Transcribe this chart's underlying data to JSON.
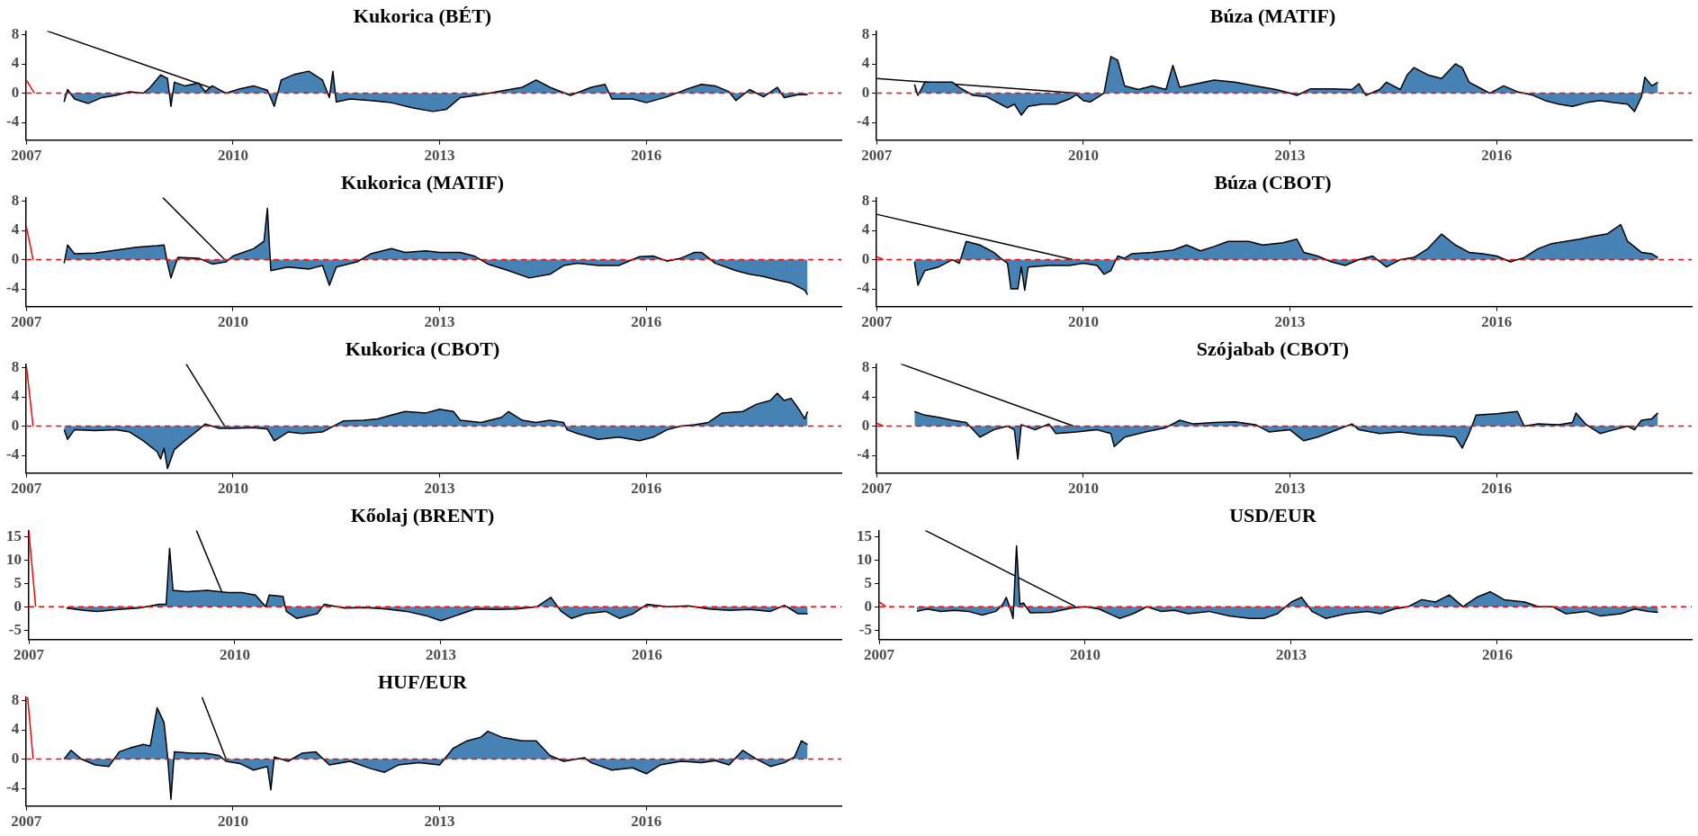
{
  "chart_data": [
    {
      "type": "area",
      "title": "Kukorica (BÉT)",
      "xlim": [
        2007,
        2018.83
      ],
      "xticks": [
        2007,
        2010,
        2013,
        2016
      ],
      "ylim": [
        -6.4,
        8.5
      ],
      "yticks": [
        -4,
        0,
        4,
        8
      ],
      "ref_lines": [
        {
          "axis": "y",
          "value": 0,
          "color": "#ff0000",
          "line_style": "dashed"
        }
      ],
      "series": [
        {
          "type": "area",
          "color": "#4682b4",
          "x": [
            2007.55,
            2007.6,
            2007.7,
            2007.9,
            2008.1,
            2008.3,
            2008.5,
            2008.7,
            2008.8,
            2008.95,
            2009.05,
            2009.1,
            2009.15,
            2009.3,
            2009.5,
            2009.6,
            2009.7,
            2009.9,
            2010.1,
            2010.3,
            2010.5,
            2010.6,
            2010.7,
            2010.9,
            2011.1,
            2011.3,
            2011.4,
            2011.45,
            2011.5,
            2011.7,
            2012.0,
            2012.3,
            2012.6,
            2012.9,
            2013.1,
            2013.3,
            2013.6,
            2013.9,
            2014.2,
            2014.4,
            2014.6,
            2014.9,
            2015.2,
            2015.4,
            2015.5,
            2015.8,
            2016.0,
            2016.3,
            2016.6,
            2016.8,
            2017.0,
            2017.2,
            2017.3,
            2017.5,
            2017.7,
            2017.9,
            2018.0,
            2018.2,
            2018.34
          ],
          "values": [
            -1.2,
            0.5,
            -0.8,
            -1.4,
            -0.6,
            -0.3,
            0.2,
            0.0,
            0.8,
            2.5,
            2.0,
            -1.8,
            1.5,
            1.0,
            1.4,
            0.2,
            1.0,
            0.0,
            0.6,
            1.0,
            0.4,
            -1.8,
            1.8,
            2.6,
            3.0,
            1.8,
            -0.6,
            3.0,
            -1.2,
            -0.8,
            -1.0,
            -1.3,
            -2.0,
            -2.5,
            -2.2,
            -0.6,
            -0.2,
            0.3,
            0.8,
            1.8,
            0.8,
            -0.3,
            0.8,
            1.2,
            -0.8,
            -0.8,
            -1.3,
            -0.5,
            0.6,
            1.2,
            1.0,
            0.2,
            -1.0,
            0.5,
            -0.5,
            0.8,
            -0.6,
            -0.2,
            -0.2
          ]
        },
        {
          "type": "line",
          "color": "#000000",
          "x": [
            2007.3,
            2009.9
          ],
          "values": [
            8.5,
            0
          ]
        },
        {
          "type": "line",
          "color": "#ff0000",
          "x": [
            2007,
            2007.12
          ],
          "values": [
            1.8,
            0
          ]
        }
      ]
    },
    {
      "type": "area",
      "title": "Búza (MATIF)",
      "xlim": [
        2007,
        2018.83
      ],
      "xticks": [
        2007,
        2010,
        2013,
        2016
      ],
      "ylim": [
        -6.4,
        8.5
      ],
      "yticks": [
        -4,
        0,
        4,
        8
      ],
      "ref_lines": [
        {
          "axis": "y",
          "value": 0,
          "color": "#ff0000",
          "line_style": "dashed"
        }
      ],
      "series": [
        {
          "type": "area",
          "color": "#4682b4",
          "x": [
            2007.55,
            2007.6,
            2007.7,
            2007.9,
            2008.1,
            2008.2,
            2008.4,
            2008.6,
            2008.8,
            2008.9,
            2009.0,
            2009.1,
            2009.2,
            2009.4,
            2009.6,
            2009.8,
            2009.9,
            2010.0,
            2010.1,
            2010.3,
            2010.4,
            2010.5,
            2010.6,
            2010.8,
            2011.0,
            2011.2,
            2011.3,
            2011.4,
            2011.6,
            2011.9,
            2012.2,
            2012.5,
            2012.8,
            2013.0,
            2013.1,
            2013.3,
            2013.6,
            2013.9,
            2014.0,
            2014.1,
            2014.3,
            2014.4,
            2014.6,
            2014.7,
            2014.8,
            2015.0,
            2015.2,
            2015.4,
            2015.5,
            2015.6,
            2015.8,
            2015.9,
            2016.1,
            2016.3,
            2016.5,
            2016.7,
            2016.9,
            2017.1,
            2017.3,
            2017.5,
            2017.7,
            2017.9,
            2018.0,
            2018.1,
            2018.15,
            2018.25,
            2018.34
          ],
          "values": [
            1.2,
            -0.3,
            1.5,
            1.5,
            1.5,
            0.8,
            -0.3,
            -0.5,
            -1.5,
            -2.0,
            -1.5,
            -3.0,
            -1.8,
            -1.5,
            -1.5,
            -0.8,
            -0.2,
            -1.0,
            -1.2,
            0.0,
            5.0,
            4.5,
            1.0,
            0.5,
            1.0,
            0.5,
            3.8,
            0.8,
            1.2,
            1.8,
            1.5,
            1.0,
            0.5,
            0.0,
            -0.3,
            0.6,
            0.6,
            0.5,
            1.3,
            -0.3,
            0.5,
            1.5,
            0.5,
            2.5,
            3.5,
            2.5,
            2.0,
            4.0,
            3.5,
            1.5,
            0.5,
            0.0,
            1.0,
            0.2,
            -0.2,
            -1.0,
            -1.5,
            -1.8,
            -1.3,
            -1.0,
            -1.3,
            -1.5,
            -2.5,
            -0.5,
            2.2,
            1.0,
            1.5
          ]
        },
        {
          "type": "line",
          "color": "#000000",
          "x": [
            2007,
            2009.9
          ],
          "values": [
            2.0,
            0
          ]
        }
      ]
    },
    {
      "type": "area",
      "title": "Kukorica (MATIF)",
      "xlim": [
        2007,
        2018.83
      ],
      "xticks": [
        2007,
        2010,
        2013,
        2016
      ],
      "ylim": [
        -6.4,
        8.5
      ],
      "yticks": [
        -4,
        0,
        4,
        8
      ],
      "ref_lines": [
        {
          "axis": "y",
          "value": 0,
          "color": "#ff0000",
          "line_style": "dashed"
        }
      ],
      "series": [
        {
          "type": "area",
          "color": "#4682b4",
          "x": [
            2007.55,
            2007.6,
            2007.7,
            2008.0,
            2008.3,
            2008.6,
            2008.9,
            2009.0,
            2009.05,
            2009.1,
            2009.2,
            2009.5,
            2009.7,
            2009.9,
            2010.0,
            2010.3,
            2010.45,
            2010.5,
            2010.55,
            2010.8,
            2011.1,
            2011.3,
            2011.4,
            2011.5,
            2011.8,
            2012.0,
            2012.3,
            2012.5,
            2012.8,
            2013.0,
            2013.3,
            2013.5,
            2013.7,
            2014.0,
            2014.3,
            2014.6,
            2014.8,
            2015.0,
            2015.3,
            2015.6,
            2015.9,
            2016.1,
            2016.3,
            2016.5,
            2016.7,
            2016.8,
            2017.0,
            2017.3,
            2017.5,
            2017.7,
            2017.9,
            2018.1,
            2018.3,
            2018.34
          ],
          "values": [
            -0.5,
            2.0,
            0.8,
            0.9,
            1.3,
            1.7,
            1.9,
            2.0,
            -0.5,
            -2.5,
            0.3,
            0.2,
            -0.6,
            -0.3,
            0.5,
            1.5,
            2.5,
            7.0,
            -1.5,
            -1.0,
            -1.3,
            -0.8,
            -3.5,
            -1.0,
            -0.3,
            0.8,
            1.5,
            1.0,
            1.2,
            1.0,
            1.0,
            0.5,
            -0.6,
            -1.5,
            -2.5,
            -2.0,
            -0.8,
            -0.5,
            -0.8,
            -0.8,
            0.4,
            0.5,
            -0.2,
            0.2,
            1.0,
            1.0,
            -0.5,
            -1.5,
            -2.0,
            -2.3,
            -2.8,
            -3.2,
            -4.2,
            -4.8
          ]
        },
        {
          "type": "line",
          "color": "#000000",
          "x": [
            2008.98,
            2009.88
          ],
          "values": [
            8.5,
            0
          ]
        },
        {
          "type": "line",
          "color": "#ff0000",
          "x": [
            2007,
            2007.1
          ],
          "values": [
            4.6,
            0
          ]
        }
      ]
    },
    {
      "type": "area",
      "title": "Búza (CBOT)",
      "xlim": [
        2007,
        2018.83
      ],
      "xticks": [
        2007,
        2010,
        2013,
        2016
      ],
      "ylim": [
        -6.4,
        8.5
      ],
      "yticks": [
        -4,
        0,
        4,
        8
      ],
      "ref_lines": [
        {
          "axis": "y",
          "value": 0,
          "color": "#ff0000",
          "line_style": "dashed"
        }
      ],
      "series": [
        {
          "type": "area",
          "color": "#4682b4",
          "x": [
            2007.55,
            2007.6,
            2007.7,
            2007.9,
            2008.1,
            2008.2,
            2008.3,
            2008.5,
            2008.7,
            2008.8,
            2008.9,
            2008.95,
            2009.05,
            2009.1,
            2009.15,
            2009.2,
            2009.5,
            2009.8,
            2010.0,
            2010.2,
            2010.3,
            2010.4,
            2010.5,
            2010.6,
            2010.7,
            2011.0,
            2011.3,
            2011.5,
            2011.7,
            2011.9,
            2012.1,
            2012.4,
            2012.6,
            2012.9,
            2013.1,
            2013.2,
            2013.4,
            2013.6,
            2013.8,
            2014.0,
            2014.2,
            2014.4,
            2014.6,
            2014.8,
            2015.0,
            2015.2,
            2015.4,
            2015.6,
            2015.8,
            2016.0,
            2016.2,
            2016.4,
            2016.6,
            2016.8,
            2017.0,
            2017.2,
            2017.4,
            2017.6,
            2017.8,
            2017.9,
            2018.1,
            2018.25,
            2018.34
          ],
          "values": [
            -0.3,
            -3.5,
            -1.5,
            -1.0,
            0.0,
            -0.5,
            2.5,
            2.0,
            1.0,
            0.2,
            -0.5,
            -4.0,
            -4.0,
            -1.0,
            -4.2,
            -1.0,
            -0.8,
            -0.8,
            -0.5,
            -0.8,
            -2.0,
            -1.5,
            0.5,
            0.2,
            0.8,
            1.0,
            1.3,
            2.0,
            1.2,
            1.8,
            2.5,
            2.5,
            2.0,
            2.3,
            2.8,
            1.0,
            0.5,
            -0.3,
            -0.8,
            0.0,
            0.5,
            -1.0,
            0.0,
            0.3,
            1.5,
            3.5,
            2.0,
            1.0,
            0.8,
            0.5,
            -0.3,
            0.3,
            1.5,
            2.2,
            2.5,
            2.8,
            3.2,
            3.5,
            4.8,
            2.5,
            1.0,
            0.8,
            0.3
          ]
        },
        {
          "type": "line",
          "color": "#000000",
          "x": [
            2007,
            2009.85
          ],
          "values": [
            6.2,
            0
          ]
        },
        {
          "type": "line",
          "color": "#ff0000",
          "x": [
            2007,
            2007.1
          ],
          "values": [
            0.4,
            0
          ]
        }
      ]
    },
    {
      "type": "area",
      "title": "Kukorica (CBOT)",
      "xlim": [
        2007,
        2018.83
      ],
      "xticks": [
        2007,
        2010,
        2013,
        2016
      ],
      "ylim": [
        -6.4,
        8.5
      ],
      "yticks": [
        -4,
        0,
        4,
        8
      ],
      "ref_lines": [
        {
          "axis": "y",
          "value": 0,
          "color": "#ff0000",
          "line_style": "dashed"
        }
      ],
      "series": [
        {
          "type": "area",
          "color": "#4682b4",
          "x": [
            2007.55,
            2007.6,
            2007.7,
            2008.0,
            2008.3,
            2008.5,
            2008.7,
            2008.9,
            2008.95,
            2009.0,
            2009.05,
            2009.15,
            2009.3,
            2009.5,
            2009.6,
            2009.8,
            2010.0,
            2010.3,
            2010.5,
            2010.6,
            2010.8,
            2011.0,
            2011.3,
            2011.5,
            2011.6,
            2011.9,
            2012.1,
            2012.3,
            2012.5,
            2012.8,
            2013.0,
            2013.2,
            2013.3,
            2013.6,
            2013.9,
            2014.0,
            2014.2,
            2014.4,
            2014.6,
            2014.8,
            2014.85,
            2015.0,
            2015.3,
            2015.6,
            2015.9,
            2016.1,
            2016.3,
            2016.5,
            2016.7,
            2016.9,
            2017.1,
            2017.4,
            2017.6,
            2017.8,
            2017.9,
            2018.0,
            2018.1,
            2018.2,
            2018.3,
            2018.34
          ],
          "values": [
            -0.5,
            -1.8,
            -0.5,
            -0.6,
            -0.5,
            -0.8,
            -2.0,
            -3.5,
            -4.5,
            -3.0,
            -5.8,
            -3.2,
            -2.0,
            -0.5,
            0.3,
            -0.3,
            -0.3,
            -0.2,
            -0.4,
            -2.0,
            -0.8,
            -1.0,
            -0.8,
            0.2,
            0.7,
            0.8,
            1.0,
            1.5,
            2.0,
            1.8,
            2.3,
            2.0,
            0.8,
            0.5,
            1.2,
            2.0,
            0.8,
            0.5,
            0.8,
            0.5,
            -0.5,
            -1.0,
            -1.8,
            -1.5,
            -2.0,
            -1.5,
            -0.5,
            0.0,
            0.2,
            0.5,
            1.8,
            2.0,
            3.0,
            3.5,
            4.5,
            3.5,
            3.8,
            2.5,
            1.0,
            2.0
          ]
        },
        {
          "type": "line",
          "color": "#000000",
          "x": [
            2009.32,
            2009.88
          ],
          "values": [
            8.5,
            0
          ]
        },
        {
          "type": "line",
          "color": "#ff0000",
          "x": [
            2007,
            2007.1
          ],
          "values": [
            8.4,
            0
          ]
        }
      ]
    },
    {
      "type": "area",
      "title": "Szójabab (CBOT)",
      "xlim": [
        2007,
        2018.83
      ],
      "xticks": [
        2007,
        2010,
        2013,
        2016
      ],
      "ylim": [
        -6.4,
        8.5
      ],
      "yticks": [
        -4,
        0,
        4,
        8
      ],
      "ref_lines": [
        {
          "axis": "y",
          "value": 0,
          "color": "#ff0000",
          "line_style": "dashed"
        }
      ],
      "series": [
        {
          "type": "area",
          "color": "#4682b4",
          "x": [
            2007.55,
            2007.7,
            2007.9,
            2008.1,
            2008.3,
            2008.4,
            2008.5,
            2008.7,
            2008.9,
            2009.0,
            2009.05,
            2009.1,
            2009.3,
            2009.5,
            2009.6,
            2009.9,
            2010.2,
            2010.4,
            2010.45,
            2010.6,
            2010.9,
            2011.2,
            2011.4,
            2011.6,
            2011.9,
            2012.2,
            2012.5,
            2012.7,
            2013.0,
            2013.2,
            2013.4,
            2013.6,
            2013.9,
            2014.0,
            2014.3,
            2014.6,
            2014.9,
            2015.2,
            2015.4,
            2015.5,
            2015.6,
            2015.7,
            2016.0,
            2016.3,
            2016.4,
            2016.6,
            2016.9,
            2017.1,
            2017.15,
            2017.3,
            2017.5,
            2017.7,
            2017.9,
            2018.0,
            2018.1,
            2018.25,
            2018.34
          ],
          "values": [
            2.0,
            1.5,
            1.2,
            0.8,
            0.5,
            -0.5,
            -1.5,
            -0.5,
            0.0,
            -0.5,
            -4.5,
            0.2,
            -0.5,
            0.3,
            -1.0,
            -0.8,
            -0.5,
            -1.0,
            -2.8,
            -1.5,
            -0.8,
            -0.2,
            0.8,
            0.3,
            0.5,
            0.6,
            0.2,
            -0.8,
            -0.5,
            -2.0,
            -1.5,
            -0.8,
            0.3,
            -0.5,
            -1.0,
            -0.8,
            -1.2,
            -1.3,
            -1.5,
            -3.0,
            -1.0,
            1.5,
            1.7,
            2.0,
            0.0,
            0.3,
            0.2,
            0.5,
            1.8,
            0.2,
            -1.0,
            -0.5,
            0.0,
            -0.5,
            0.8,
            1.0,
            1.8
          ]
        },
        {
          "type": "line",
          "color": "#000000",
          "x": [
            2007.35,
            2009.86
          ],
          "values": [
            8.5,
            0
          ]
        },
        {
          "type": "line",
          "color": "#ff0000",
          "x": [
            2007,
            2007.1
          ],
          "values": [
            0.4,
            0
          ]
        }
      ]
    },
    {
      "type": "area",
      "title": "Kőolaj (BRENT)",
      "xlim": [
        2007,
        2018.83
      ],
      "xticks": [
        2007,
        2010,
        2013,
        2016
      ],
      "ylim": [
        -7,
        16.3
      ],
      "yticks": [
        -5,
        0,
        5,
        10,
        15
      ],
      "ref_lines": [
        {
          "axis": "y",
          "value": 0,
          "color": "#ff0000",
          "line_style": "dashed"
        }
      ],
      "series": [
        {
          "type": "area",
          "color": "#4682b4",
          "x": [
            2007.55,
            2007.8,
            2008.0,
            2008.3,
            2008.6,
            2008.9,
            2009.0,
            2009.05,
            2009.1,
            2009.3,
            2009.6,
            2009.9,
            2010.1,
            2010.3,
            2010.45,
            2010.5,
            2010.7,
            2010.75,
            2010.9,
            2011.2,
            2011.3,
            2011.6,
            2011.9,
            2012.2,
            2012.5,
            2012.8,
            2013.0,
            2013.2,
            2013.5,
            2013.8,
            2014.1,
            2014.4,
            2014.6,
            2014.75,
            2014.9,
            2015.1,
            2015.4,
            2015.6,
            2015.8,
            2016.0,
            2016.3,
            2016.6,
            2016.9,
            2017.2,
            2017.5,
            2017.8,
            2018.0,
            2018.2,
            2018.34
          ],
          "values": [
            -0.3,
            -0.8,
            -1.0,
            -0.6,
            -0.3,
            0.5,
            0.5,
            12.5,
            3.5,
            3.2,
            3.5,
            3.0,
            3.0,
            2.5,
            0.0,
            2.5,
            2.2,
            -1.0,
            -2.5,
            -1.5,
            0.5,
            -0.3,
            -0.2,
            -0.5,
            -1.0,
            -2.0,
            -3.0,
            -2.0,
            -0.5,
            -0.6,
            -0.5,
            0.0,
            2.0,
            -1.0,
            -2.5,
            -1.5,
            -1.0,
            -2.5,
            -1.5,
            0.5,
            0.0,
            0.2,
            -0.5,
            -0.8,
            -0.6,
            -1.0,
            0.3,
            -1.5,
            -1.5
          ]
        },
        {
          "type": "line",
          "color": "#000000",
          "x": [
            2009.44,
            2009.9
          ],
          "values": [
            16.3,
            0
          ]
        },
        {
          "type": "line",
          "color": "#ff0000",
          "x": [
            2007,
            2007.1
          ],
          "values": [
            16.3,
            0
          ]
        }
      ]
    },
    {
      "type": "area",
      "title": "USD/EUR",
      "xlim": [
        2007,
        2018.83
      ],
      "xticks": [
        2007,
        2010,
        2013,
        2016
      ],
      "ylim": [
        -7,
        16.3
      ],
      "yticks": [
        -5,
        0,
        5,
        10,
        15
      ],
      "ref_lines": [
        {
          "axis": "y",
          "value": 0,
          "color": "#ff0000",
          "line_style": "dashed"
        }
      ],
      "series": [
        {
          "type": "area",
          "color": "#4682b4",
          "x": [
            2007.55,
            2007.7,
            2007.9,
            2008.1,
            2008.3,
            2008.5,
            2008.7,
            2008.8,
            2008.85,
            2008.9,
            2008.95,
            2009.0,
            2009.05,
            2009.1,
            2009.2,
            2009.5,
            2009.8,
            2010.0,
            2010.2,
            2010.5,
            2010.7,
            2010.9,
            2011.1,
            2011.3,
            2011.5,
            2011.8,
            2012.1,
            2012.4,
            2012.6,
            2012.8,
            2013.0,
            2013.15,
            2013.3,
            2013.5,
            2013.8,
            2014.1,
            2014.3,
            2014.5,
            2014.7,
            2014.9,
            2015.1,
            2015.3,
            2015.5,
            2015.7,
            2015.9,
            2016.1,
            2016.4,
            2016.6,
            2016.8,
            2017.0,
            2017.3,
            2017.5,
            2017.8,
            2018.0,
            2018.2,
            2018.34
          ],
          "values": [
            -1.0,
            -0.5,
            -1.0,
            -0.8,
            -1.0,
            -1.8,
            -1.0,
            0.5,
            2.0,
            0.0,
            -2.5,
            13.0,
            0.5,
            0.8,
            -1.3,
            -1.2,
            -0.3,
            0.0,
            -0.5,
            -2.5,
            -1.5,
            0.0,
            -1.0,
            -0.8,
            -1.5,
            -1.0,
            -2.0,
            -2.5,
            -2.5,
            -1.5,
            1.0,
            2.0,
            -1.0,
            -2.5,
            -1.5,
            -1.0,
            -1.5,
            -0.5,
            0.0,
            1.5,
            1.0,
            2.5,
            0.0,
            2.0,
            3.2,
            1.5,
            1.0,
            0.0,
            0.0,
            -1.5,
            -1.0,
            -2.0,
            -1.5,
            -0.5,
            -1.0,
            -1.2
          ]
        },
        {
          "type": "line",
          "color": "#000000",
          "x": [
            2007.67,
            2009.86
          ],
          "values": [
            16.3,
            0
          ]
        },
        {
          "type": "line",
          "color": "#ff0000",
          "x": [
            2007,
            2007.1
          ],
          "values": [
            1.0,
            0
          ]
        }
      ]
    },
    {
      "type": "area",
      "title": "HUF/EUR",
      "xlim": [
        2007,
        2018.83
      ],
      "xticks": [
        2007,
        2010,
        2013,
        2016
      ],
      "ylim": [
        -6.4,
        8.5
      ],
      "yticks": [
        -4,
        0,
        4,
        8
      ],
      "ref_lines": [
        {
          "axis": "y",
          "value": 0,
          "color": "#ff0000",
          "line_style": "dashed"
        }
      ],
      "series": [
        {
          "type": "area",
          "color": "#4682b4",
          "x": [
            2007.55,
            2007.65,
            2007.8,
            2008.0,
            2008.2,
            2008.35,
            2008.5,
            2008.7,
            2008.8,
            2008.9,
            2009.0,
            2009.05,
            2009.1,
            2009.15,
            2009.4,
            2009.6,
            2009.8,
            2009.9,
            2010.1,
            2010.3,
            2010.5,
            2010.55,
            2010.6,
            2010.8,
            2011.0,
            2011.2,
            2011.4,
            2011.7,
            2012.0,
            2012.2,
            2012.4,
            2012.7,
            2013.0,
            2013.2,
            2013.4,
            2013.6,
            2013.7,
            2013.9,
            2014.2,
            2014.4,
            2014.6,
            2014.8,
            2015.1,
            2015.2,
            2015.5,
            2015.8,
            2016.0,
            2016.2,
            2016.5,
            2016.8,
            2017.0,
            2017.2,
            2017.4,
            2017.6,
            2017.8,
            2018.0,
            2018.15,
            2018.25,
            2018.34
          ],
          "values": [
            0.0,
            1.2,
            0.0,
            -0.8,
            -1.0,
            1.0,
            1.5,
            2.0,
            1.8,
            7.0,
            5.0,
            0.5,
            -5.5,
            1.0,
            0.8,
            0.8,
            0.5,
            -0.3,
            -0.6,
            -1.5,
            -1.0,
            -4.2,
            0.3,
            -0.3,
            0.8,
            1.0,
            -0.8,
            -0.3,
            -1.3,
            -1.8,
            -0.8,
            -0.5,
            -0.8,
            1.5,
            2.5,
            3.0,
            3.8,
            3.0,
            2.5,
            2.5,
            0.5,
            -0.3,
            0.2,
            -0.5,
            -1.5,
            -1.2,
            -2.0,
            -0.8,
            -0.3,
            -0.5,
            -0.2,
            -0.8,
            1.2,
            0.0,
            -1.0,
            -0.5,
            0.3,
            2.5,
            2.0
          ]
        },
        {
          "type": "line",
          "color": "#000000",
          "x": [
            2009.55,
            2009.9
          ],
          "values": [
            8.5,
            0
          ]
        },
        {
          "type": "line",
          "color": "#ff0000",
          "x": [
            2007.02,
            2007.1
          ],
          "values": [
            8.5,
            0
          ]
        }
      ]
    }
  ]
}
